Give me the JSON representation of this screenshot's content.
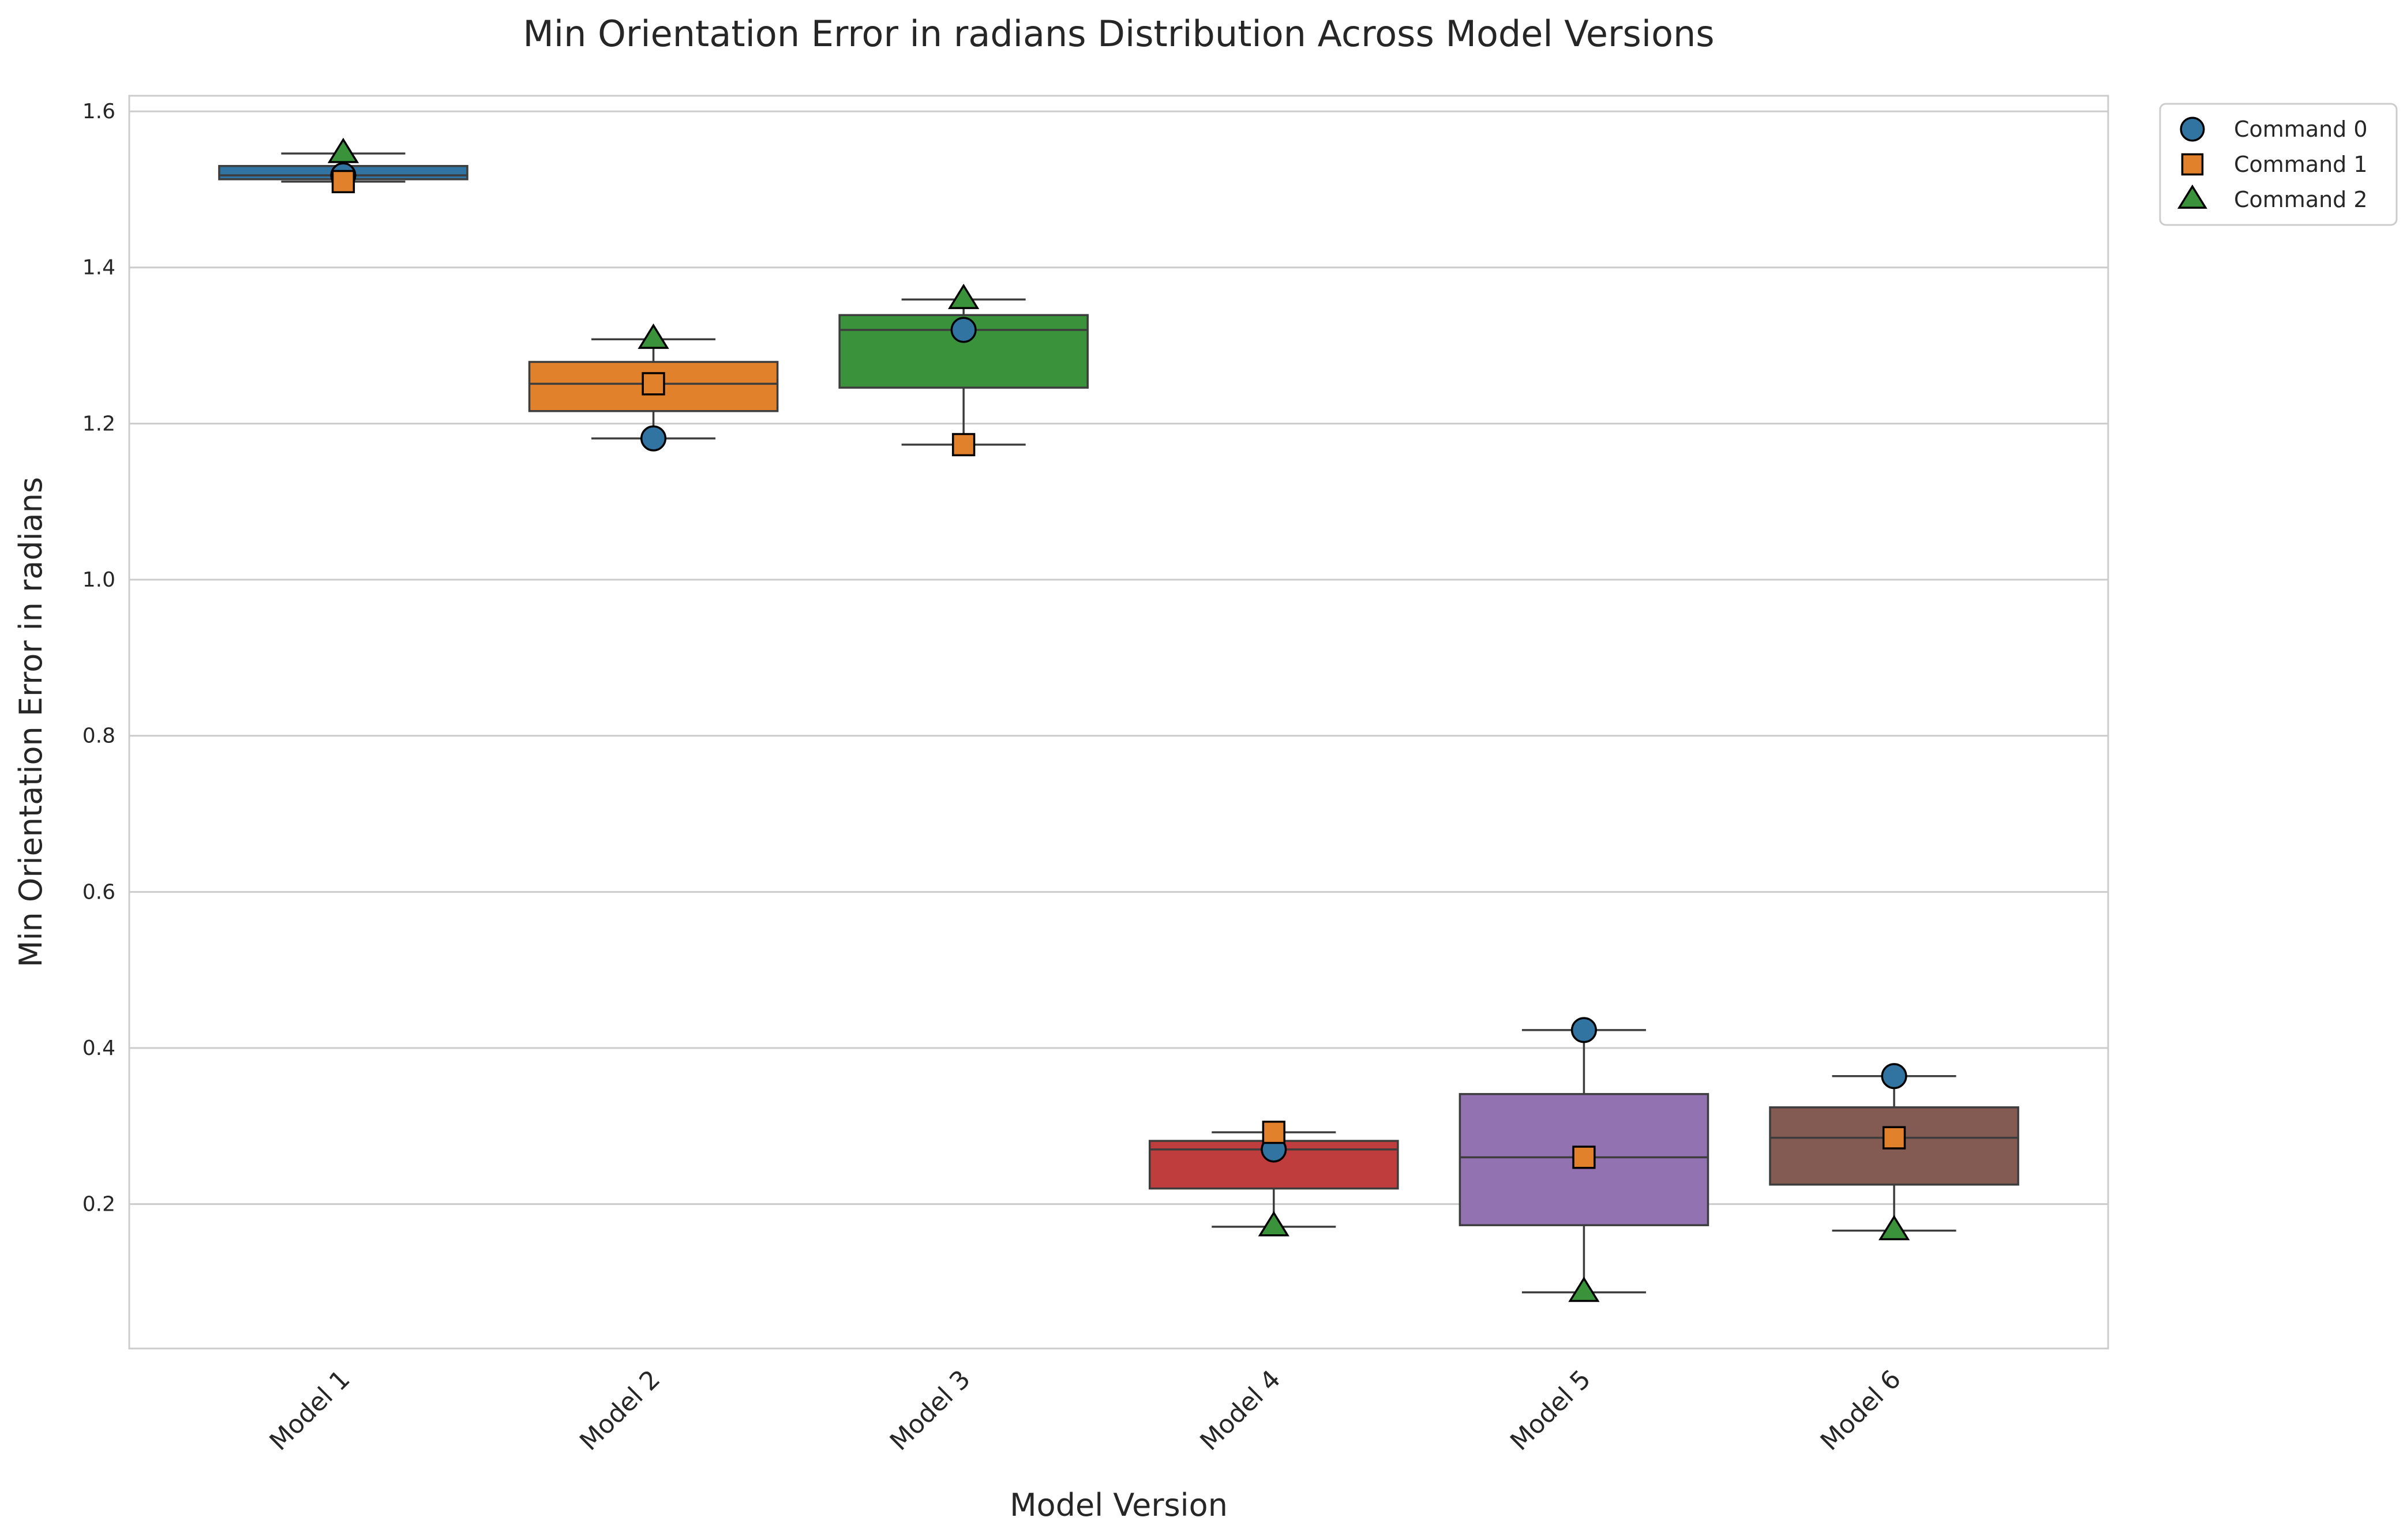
{
  "chart_data": {
    "type": "box",
    "title": "Min Orientation Error in radians Distribution Across Model Versions",
    "xlabel": "Model Version",
    "ylabel": "Min Orientation Error in radians",
    "ylim": [
      0.015,
      1.62
    ],
    "yticks": [
      0.2,
      0.4,
      0.6,
      0.8,
      1.0,
      1.2,
      1.4,
      1.6
    ],
    "ytick_labels": [
      "0.2",
      "0.4",
      "0.6",
      "0.8",
      "1.0",
      "1.2",
      "1.4",
      "1.6"
    ],
    "grid": true,
    "legend_position": "outside-top-right",
    "categories": [
      "Model 1",
      "Model 2",
      "Model 3",
      "Model 4",
      "Model 5",
      "Model 6"
    ],
    "box_colors": [
      "#3274a1",
      "#e1812c",
      "#3a923a",
      "#c03d3e",
      "#9372b2",
      "#845b53"
    ],
    "boxes": [
      {
        "whisker_low": 1.51,
        "q1": 1.513,
        "median": 1.518,
        "q3": 1.53,
        "whisker_high": 1.546
      },
      {
        "whisker_low": 1.181,
        "q1": 1.216,
        "median": 1.251,
        "q3": 1.279,
        "whisker_high": 1.308
      },
      {
        "whisker_low": 1.173,
        "q1": 1.246,
        "median": 1.32,
        "q3": 1.339,
        "whisker_high": 1.359
      },
      {
        "whisker_low": 0.171,
        "q1": 0.22,
        "median": 0.27,
        "q3": 0.281,
        "whisker_high": 0.292
      },
      {
        "whisker_low": 0.087,
        "q1": 0.173,
        "median": 0.26,
        "q3": 0.341,
        "whisker_high": 0.423
      },
      {
        "whisker_low": 0.166,
        "q1": 0.225,
        "median": 0.285,
        "q3": 0.324,
        "whisker_high": 0.364
      }
    ],
    "series": [
      {
        "name": "Command 0",
        "marker": "circle",
        "color": "#3274a1",
        "values": [
          1.518,
          1.181,
          1.32,
          0.27,
          0.423,
          0.364
        ]
      },
      {
        "name": "Command 1",
        "marker": "square",
        "color": "#e1812c",
        "values": [
          1.51,
          1.251,
          1.173,
          0.292,
          0.26,
          0.285
        ]
      },
      {
        "name": "Command 2",
        "marker": "triangle",
        "color": "#3a923a",
        "values": [
          1.546,
          1.308,
          1.359,
          0.171,
          0.087,
          0.166
        ]
      }
    ]
  }
}
